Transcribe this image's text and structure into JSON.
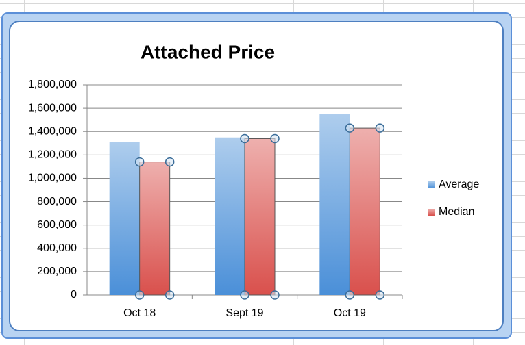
{
  "chart_data": {
    "type": "bar",
    "title": "Attached Price",
    "categories": [
      "Oct 18",
      "Sept  19",
      "Oct  19"
    ],
    "series": [
      {
        "name": "Average",
        "color": "#4a8fd8",
        "values": [
          1310000,
          1350000,
          1550000
        ]
      },
      {
        "name": "Median",
        "color": "#d9504c",
        "values": [
          1140000,
          1340000,
          1430000
        ]
      }
    ],
    "ylim": [
      0,
      1800000
    ],
    "yticks": [
      0,
      {
        "value": 200000,
        "label": "200,000"
      },
      {
        "value": 400000,
        "label": "400,000"
      },
      {
        "value": 600000,
        "label": "600,000"
      },
      {
        "value": 800000,
        "label": "800,000"
      },
      {
        "value": 1000000,
        "label": "1,000,000"
      },
      {
        "value": 1200000,
        "label": "1,200,000"
      },
      {
        "value": 1400000,
        "label": "1,400,000"
      },
      {
        "value": 1600000,
        "label": "1,600,000"
      },
      {
        "value": 1800000,
        "label": "1,800,000"
      }
    ],
    "grid": true,
    "legend": "right"
  }
}
